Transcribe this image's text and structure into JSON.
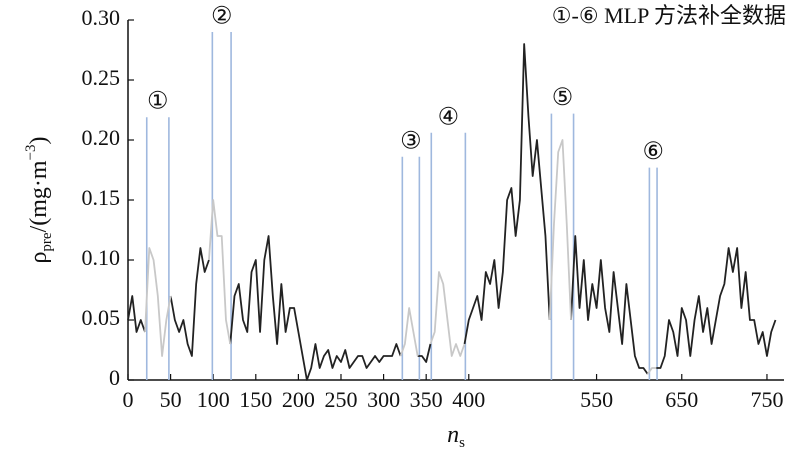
{
  "chart_data": {
    "type": "line",
    "annotation": "①-⑥ MLP 方法补全数据",
    "xlabel_parts": [
      {
        "text": "n"
      },
      {
        "text": "s",
        "shift": "sub"
      }
    ],
    "ylabel_parts": [
      {
        "text": "ρ"
      },
      {
        "text": "pre",
        "shift": "sub"
      },
      {
        "text": "/(mg·m"
      },
      {
        "text": "−3",
        "shift": "super"
      },
      {
        "text": ")"
      }
    ],
    "xlim": [
      0,
      770
    ],
    "ylim": [
      0,
      0.3
    ],
    "xticks": [
      0,
      50,
      100,
      150,
      200,
      250,
      300,
      350,
      400,
      550,
      650,
      750
    ],
    "yticks": [
      0,
      0.05,
      {
        "value": 0.1,
        "label": "0.10"
      },
      0.15,
      {
        "value": 0.2,
        "label": "0.20"
      },
      0.25,
      {
        "value": 0.3,
        "label": "0.30"
      }
    ],
    "x": [
      0,
      5,
      10,
      15,
      20,
      25,
      30,
      35,
      40,
      45,
      50,
      55,
      60,
      65,
      70,
      75,
      80,
      85,
      90,
      95,
      100,
      105,
      110,
      115,
      120,
      125,
      130,
      135,
      140,
      145,
      150,
      155,
      160,
      165,
      170,
      175,
      180,
      185,
      190,
      195,
      200,
      205,
      210,
      215,
      220,
      225,
      230,
      235,
      240,
      245,
      250,
      255,
      260,
      265,
      270,
      275,
      280,
      285,
      290,
      295,
      300,
      305,
      310,
      315,
      320,
      325,
      330,
      335,
      340,
      345,
      350,
      355,
      360,
      365,
      370,
      375,
      380,
      385,
      390,
      395,
      400,
      405,
      410,
      415,
      420,
      425,
      430,
      435,
      440,
      445,
      450,
      455,
      460,
      465,
      470,
      475,
      480,
      485,
      490,
      495,
      500,
      505,
      510,
      515,
      520,
      525,
      530,
      535,
      540,
      545,
      550,
      555,
      560,
      565,
      570,
      575,
      580,
      585,
      590,
      595,
      600,
      605,
      610,
      615,
      620,
      625,
      630,
      635,
      640,
      645,
      650,
      655,
      660,
      665,
      670,
      675,
      680,
      685,
      690,
      695,
      700,
      705,
      710,
      715,
      720,
      725,
      730,
      735,
      740,
      745,
      750,
      755,
      760
    ],
    "series": [
      {
        "color": "#222222",
        "values": [
          0.05,
          0.07,
          0.04,
          0.05,
          0.04,
          null,
          null,
          null,
          null,
          null,
          0.07,
          0.05,
          0.04,
          0.05,
          0.03,
          0.02,
          0.08,
          0.11,
          0.09,
          0.1,
          null,
          null,
          null,
          null,
          0.03,
          0.07,
          0.08,
          0.05,
          0.04,
          0.09,
          0.1,
          0.04,
          0.1,
          0.12,
          0.07,
          0.03,
          0.08,
          0.04,
          0.06,
          0.06,
          0.04,
          0.02,
          0,
          0.01,
          0.03,
          0.01,
          0.02,
          0.025,
          0.01,
          0.02,
          0.015,
          0.025,
          0.01,
          0.015,
          0.02,
          0.02,
          0.01,
          0.015,
          0.02,
          0.015,
          0.02,
          0.02,
          0.02,
          0.03,
          0.02,
          null,
          null,
          null,
          0.02,
          0.02,
          0.015,
          0.03,
          null,
          null,
          null,
          null,
          null,
          null,
          null,
          0.03,
          0.05,
          0.06,
          0.07,
          0.05,
          0.09,
          0.08,
          0.1,
          0.06,
          0.09,
          0.15,
          0.16,
          0.12,
          0.15,
          0.28,
          0.22,
          0.17,
          0.2,
          0.16,
          0.12,
          0.05,
          null,
          null,
          null,
          null,
          0.05,
          0.12,
          0.06,
          0.1,
          0.05,
          0.08,
          0.06,
          0.1,
          0.06,
          0.04,
          0.09,
          0.06,
          0.03,
          0.08,
          0.05,
          0.02,
          0.01,
          0.01,
          0.005,
          null,
          0.01,
          0.01,
          0.02,
          0.05,
          0.04,
          0.02,
          0.06,
          0.05,
          0.02,
          0.05,
          0.07,
          0.04,
          0.06,
          0.03,
          0.05,
          0.07,
          0.08,
          0.11,
          0.09,
          0.11,
          0.06,
          0.09,
          0.05,
          0.05,
          0.03,
          0.04,
          0.02,
          0.04,
          0.05
        ]
      },
      {
        "color": "#c8c8c8",
        "values": [
          null,
          null,
          null,
          null,
          0.04,
          0.11,
          0.1,
          0.07,
          0.02,
          0.05,
          0.07,
          null,
          null,
          null,
          null,
          null,
          null,
          null,
          null,
          0.1,
          0.15,
          0.12,
          0.12,
          0.05,
          0.03,
          null,
          null,
          null,
          null,
          null,
          null,
          null,
          null,
          null,
          null,
          null,
          null,
          null,
          null,
          null,
          null,
          null,
          null,
          null,
          null,
          null,
          null,
          null,
          null,
          null,
          null,
          null,
          null,
          null,
          null,
          null,
          null,
          null,
          null,
          null,
          null,
          null,
          null,
          null,
          0.02,
          0.03,
          0.06,
          0.04,
          0.02,
          null,
          null,
          0.03,
          0.04,
          0.09,
          0.08,
          0.05,
          0.02,
          0.03,
          0.02,
          0.03,
          null,
          null,
          null,
          null,
          null,
          null,
          null,
          null,
          null,
          null,
          null,
          null,
          null,
          null,
          null,
          null,
          null,
          null,
          null,
          0.05,
          0.13,
          0.19,
          0.2,
          0.13,
          0.05,
          null,
          null,
          null,
          null,
          null,
          null,
          null,
          null,
          null,
          null,
          null,
          null,
          null,
          null,
          null,
          null,
          null,
          0.005,
          0.01,
          0.01,
          null,
          null,
          null,
          null,
          null,
          null,
          null,
          null,
          null,
          null,
          null,
          null,
          null,
          null,
          null,
          null,
          null,
          null,
          null,
          null,
          null,
          null,
          null,
          null,
          null,
          null,
          null,
          null
        ]
      }
    ],
    "marker_color": "#9fb8de",
    "markers": [
      {
        "label": "①",
        "x": [
          22,
          48
        ],
        "top": 0.219
      },
      {
        "label": "②",
        "x": [
          99,
          121
        ],
        "top": 0.29
      },
      {
        "label": "③",
        "x": [
          322,
          342
        ],
        "top": 0.186
      },
      {
        "label": "④",
        "x": [
          356,
          396
        ],
        "top": 0.206
      },
      {
        "label": "⑤",
        "x": [
          497,
          523
        ],
        "top": 0.222
      },
      {
        "label": "⑥",
        "x": [
          612,
          621
        ],
        "top": 0.177
      }
    ]
  }
}
